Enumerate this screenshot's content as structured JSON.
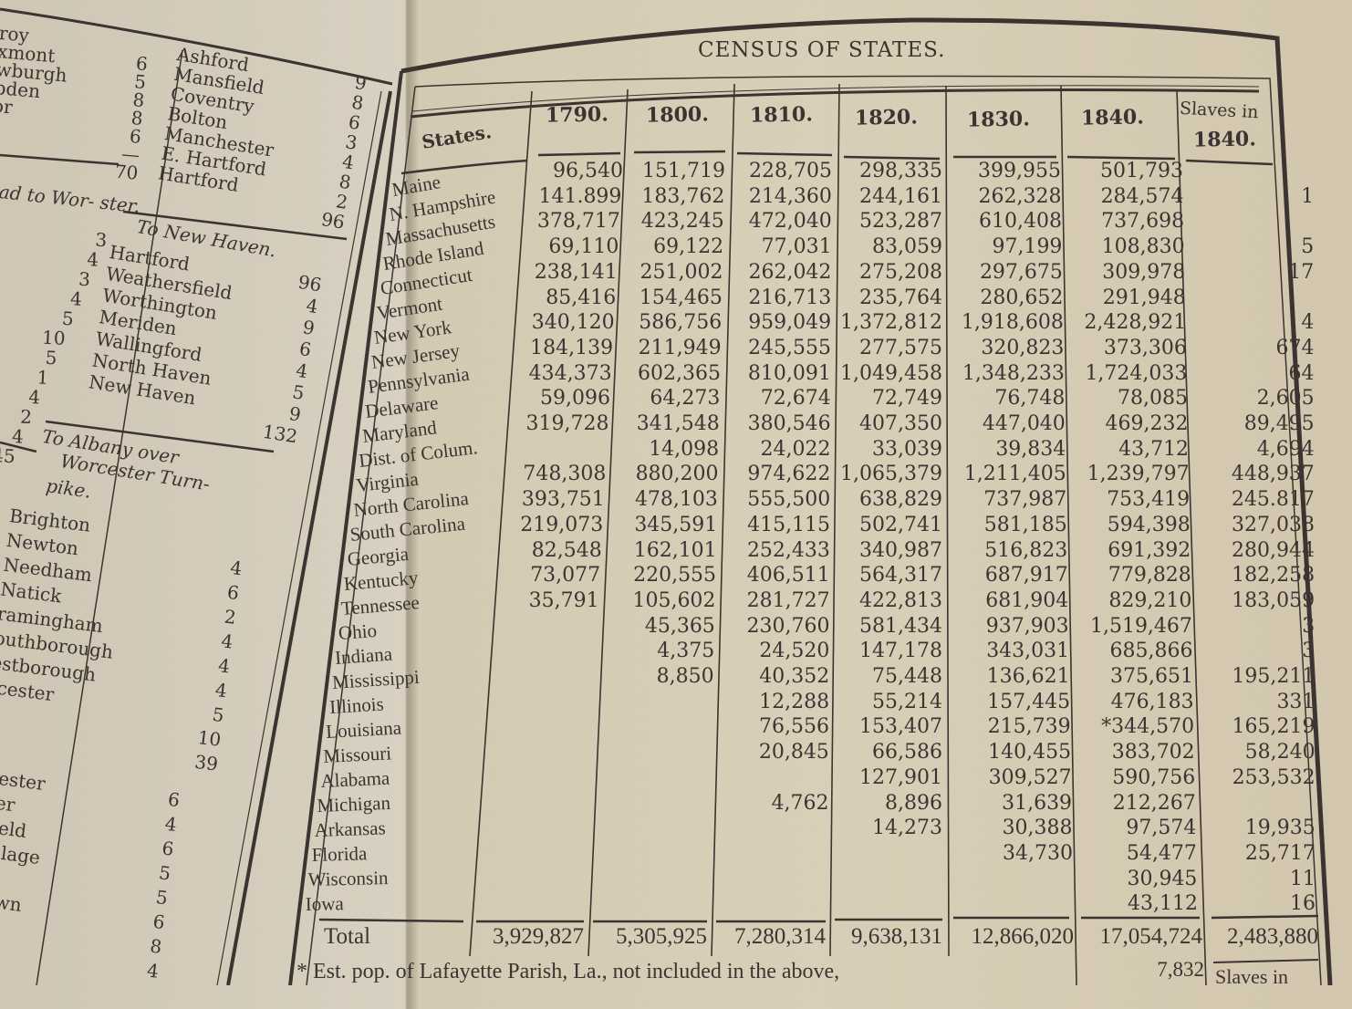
{
  "left_page": {
    "block_a": [
      {
        "name": "roy",
        "value": ""
      },
      {
        "name": "xmont",
        "value": "6"
      },
      {
        "name": "wburgh",
        "value": "5"
      },
      {
        "name": "pden",
        "value": "8"
      },
      {
        "name": "or",
        "value": "8"
      },
      {
        "name": "",
        "value": "6"
      },
      {
        "name": "",
        "value": "—"
      },
      {
        "name": "",
        "value": "70"
      }
    ],
    "block_b": [
      {
        "name": "Ashford",
        "value": "9"
      },
      {
        "name": "Mansfield",
        "value": "8"
      },
      {
        "name": "Coventry",
        "value": "6"
      },
      {
        "name": "Bolton",
        "value": "3"
      },
      {
        "name": "Manchester",
        "value": "4"
      },
      {
        "name": "E. Hartford",
        "value": "8"
      },
      {
        "name": "Hartford",
        "value": "2"
      },
      {
        "name": "",
        "value": "96"
      }
    ],
    "heading_worcester": "ad to Wor- ster.",
    "block_c_values": [
      "3",
      "4",
      "3",
      "4",
      "5",
      "10",
      "5",
      "1",
      "4",
      "2",
      "4",
      "45"
    ],
    "heading_new_haven": "To New Haven.",
    "block_d": [
      {
        "name": "Hartford",
        "value": "96"
      },
      {
        "name": "Weathersfield",
        "value": "4"
      },
      {
        "name": "Worthington",
        "value": "9"
      },
      {
        "name": "Meriden",
        "value": "6"
      },
      {
        "name": "Wallingford",
        "value": "4"
      },
      {
        "name": "North Haven",
        "value": "5"
      },
      {
        "name": "New Haven",
        "value": "9"
      },
      {
        "name": "",
        "value": "132"
      }
    ],
    "heading_albany_1": "To Albany over",
    "heading_albany_2": "Worcester Turn-",
    "heading_albany_3": "pike.",
    "block_e": [
      {
        "name": "Brighton",
        "value": ""
      },
      {
        "name": "Newton",
        "value": "4"
      },
      {
        "name": "Needham",
        "value": "6"
      },
      {
        "name": "Natick",
        "value": "2"
      },
      {
        "name": "ramingham",
        "value": "4"
      },
      {
        "name": "outhborough",
        "value": "4"
      },
      {
        "name": "estborough",
        "value": "4"
      },
      {
        "name": "rcester",
        "value": "5"
      },
      {
        "name": "",
        "value": "10"
      },
      {
        "name": "",
        "value": "39"
      }
    ],
    "block_f": [
      {
        "name": "ester",
        "value": "6"
      },
      {
        "name": "er",
        "value": "4"
      },
      {
        "name": "ield",
        "value": "6"
      },
      {
        "name": "illage",
        "value": "5"
      },
      {
        "name": "",
        "value": "5"
      },
      {
        "name": "own",
        "value": "6"
      },
      {
        "name": "",
        "value": "8"
      },
      {
        "name": "",
        "value": "4"
      },
      {
        "name": "on",
        "value": ""
      }
    ]
  },
  "table": {
    "page_title": "CENSUS OF STATES.",
    "states_header": "States.",
    "columns": [
      "1790.",
      "1800.",
      "1810.",
      "1820.",
      "1830.",
      "1840."
    ],
    "slaves_header_1": "Slaves in",
    "slaves_header_2": "1840.",
    "rows": [
      {
        "state": "Maine",
        "v": [
          "96,540",
          "151,719",
          "228,705",
          "298,335",
          "399,955",
          "501,793",
          ""
        ]
      },
      {
        "state": "N. Hampshire",
        "v": [
          "141.899",
          "183,762",
          "214,360",
          "244,161",
          "262,328",
          "284,574",
          "1"
        ]
      },
      {
        "state": "Massachusetts",
        "v": [
          "378,717",
          "423,245",
          "472,040",
          "523,287",
          "610,408",
          "737,698",
          ""
        ]
      },
      {
        "state": "Rhode Island",
        "v": [
          "69,110",
          "69,122",
          "77,031",
          "83,059",
          "97,199",
          "108,830",
          "5"
        ]
      },
      {
        "state": "Connecticut",
        "v": [
          "238,141",
          "251,002",
          "262,042",
          "275,208",
          "297,675",
          "309,978",
          "17"
        ]
      },
      {
        "state": "Vermont",
        "v": [
          "85,416",
          "154,465",
          "216,713",
          "235,764",
          "280,652",
          "291,948",
          ""
        ]
      },
      {
        "state": "New York",
        "v": [
          "340,120",
          "586,756",
          "959,049",
          "1,372,812",
          "1,918,608",
          "2,428,921",
          "4"
        ]
      },
      {
        "state": "New Jersey",
        "v": [
          "184,139",
          "211,949",
          "245,555",
          "277,575",
          "320,823",
          "373,306",
          "674"
        ]
      },
      {
        "state": "Pennsylvania",
        "v": [
          "434,373",
          "602,365",
          "810,091",
          "1,049,458",
          "1,348,233",
          "1,724,033",
          "64"
        ]
      },
      {
        "state": "Delaware",
        "v": [
          "59,096",
          "64,273",
          "72,674",
          "72,749",
          "76,748",
          "78,085",
          "2,605"
        ]
      },
      {
        "state": "Maryland",
        "v": [
          "319,728",
          "341,548",
          "380,546",
          "407,350",
          "447,040",
          "469,232",
          "89,495"
        ]
      },
      {
        "state": "Dist. of Colum.",
        "v": [
          "",
          "14,098",
          "24,022",
          "33,039",
          "39,834",
          "43,712",
          "4,694"
        ]
      },
      {
        "state": "Virginia",
        "v": [
          "748,308",
          "880,200",
          "974,622",
          "1,065,379",
          "1,211,405",
          "1,239,797",
          "448,937"
        ]
      },
      {
        "state": "North Carolina",
        "v": [
          "393,751",
          "478,103",
          "555,500",
          "638,829",
          "737,987",
          "753,419",
          "245.817"
        ]
      },
      {
        "state": "South Carolina",
        "v": [
          "219,073",
          "345,591",
          "415,115",
          "502,741",
          "581,185",
          "594,398",
          "327,038"
        ]
      },
      {
        "state": "Georgia",
        "v": [
          "82,548",
          "162,101",
          "252,433",
          "340,987",
          "516,823",
          "691,392",
          "280,944"
        ]
      },
      {
        "state": "Kentucky",
        "v": [
          "73,077",
          "220,555",
          "406,511",
          "564,317",
          "687,917",
          "779,828",
          "182,258"
        ]
      },
      {
        "state": "Tennessee",
        "v": [
          "35,791",
          "105,602",
          "281,727",
          "422,813",
          "681,904",
          "829,210",
          "183,059"
        ]
      },
      {
        "state": "Ohio",
        "v": [
          "",
          "45,365",
          "230,760",
          "581,434",
          "937,903",
          "1,519,467",
          "3"
        ]
      },
      {
        "state": "Indiana",
        "v": [
          "",
          "4,375",
          "24,520",
          "147,178",
          "343,031",
          "685,866",
          "3"
        ]
      },
      {
        "state": "Mississippi",
        "v": [
          "",
          "8,850",
          "40,352",
          "75,448",
          "136,621",
          "375,651",
          "195,211"
        ]
      },
      {
        "state": "Illinois",
        "v": [
          "",
          "",
          "12,288",
          "55,214",
          "157,445",
          "476,183",
          "331"
        ]
      },
      {
        "state": "Louisiana",
        "v": [
          "",
          "",
          "76,556",
          "153,407",
          "215,739",
          "*344,570",
          "165,219"
        ]
      },
      {
        "state": "Missouri",
        "v": [
          "",
          "",
          "20,845",
          "66,586",
          "140,455",
          "383,702",
          "58,240"
        ]
      },
      {
        "state": "Alabama",
        "v": [
          "",
          "",
          "",
          "127,901",
          "309,527",
          "590,756",
          "253,532"
        ]
      },
      {
        "state": "Michigan",
        "v": [
          "",
          "",
          "4,762",
          "8,896",
          "31,639",
          "212,267",
          ""
        ]
      },
      {
        "state": "Arkansas",
        "v": [
          "",
          "",
          "",
          "14,273",
          "30,388",
          "97,574",
          "19,935"
        ]
      },
      {
        "state": "Florida",
        "v": [
          "",
          "",
          "",
          "",
          "34,730",
          "54,477",
          "25,717"
        ]
      },
      {
        "state": "Wisconsin",
        "v": [
          "",
          "",
          "",
          "",
          "",
          "30,945",
          "11"
        ]
      },
      {
        "state": "Iowa",
        "v": [
          "",
          "",
          "",
          "",
          "",
          "43,112",
          "16"
        ]
      }
    ],
    "total_label": "Total",
    "totals": [
      "3,929,827",
      "5,305,925",
      "7,280,314",
      "9,638,131",
      "12,866,020",
      "17,054,724",
      "2,483,880"
    ],
    "footnote": "* Est. pop. of Lafayette Parish, La., not included in the above,",
    "footnote_value": "7,832",
    "next_heading": "Slaves in"
  },
  "colors": {
    "paper": "#d9cfb8",
    "ink": "#3b3431"
  }
}
